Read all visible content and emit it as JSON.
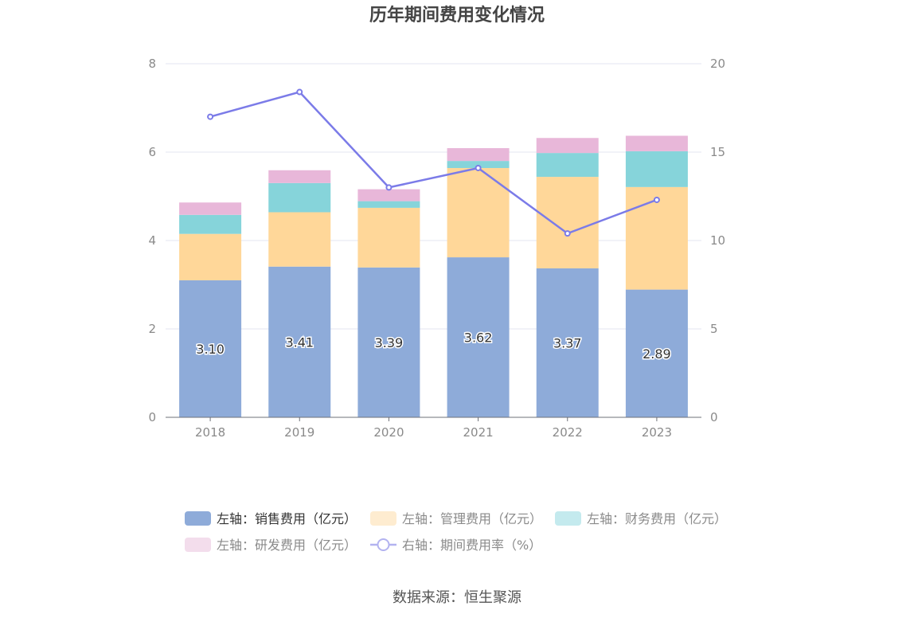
{
  "chart_data": {
    "type": "bar",
    "title": "历年期间费用变化情况",
    "categories": [
      "2018",
      "2019",
      "2020",
      "2021",
      "2022",
      "2023"
    ],
    "stacked": true,
    "y_left": {
      "min": 0,
      "max": 8,
      "ticks": [
        0,
        2,
        4,
        6,
        8
      ]
    },
    "y_right": {
      "min": 0,
      "max": 20,
      "ticks": [
        0,
        5,
        10,
        15,
        20
      ]
    },
    "series": [
      {
        "name": "左轴：销售费用（亿元）",
        "axis": "left",
        "type": "bar",
        "color": "#8eabd9",
        "values": [
          3.1,
          3.41,
          3.39,
          3.62,
          3.37,
          2.89
        ],
        "show_labels": true,
        "labels": [
          "3.10",
          "3.41",
          "3.39",
          "3.62",
          "3.37",
          "2.89"
        ]
      },
      {
        "name": "左轴：管理费用（亿元）",
        "axis": "left",
        "type": "bar",
        "color": "#ffd799",
        "values": [
          1.05,
          1.23,
          1.35,
          2.02,
          2.07,
          2.32
        ]
      },
      {
        "name": "左轴：财务费用（亿元）",
        "axis": "left",
        "type": "bar",
        "color": "#86d4da",
        "values": [
          0.43,
          0.66,
          0.15,
          0.16,
          0.54,
          0.81
        ]
      },
      {
        "name": "左轴：研发费用（亿元）",
        "axis": "left",
        "type": "bar",
        "color": "#e8b7d9",
        "values": [
          0.28,
          0.29,
          0.27,
          0.29,
          0.34,
          0.35
        ]
      },
      {
        "name": "右轴：期间费用率（%）",
        "axis": "right",
        "type": "line",
        "color": "#7b7be8",
        "values": [
          17.0,
          18.4,
          13.0,
          14.1,
          10.4,
          12.3
        ]
      }
    ],
    "legend_position": "bottom",
    "grid": true
  },
  "source": "数据来源：恒生聚源"
}
